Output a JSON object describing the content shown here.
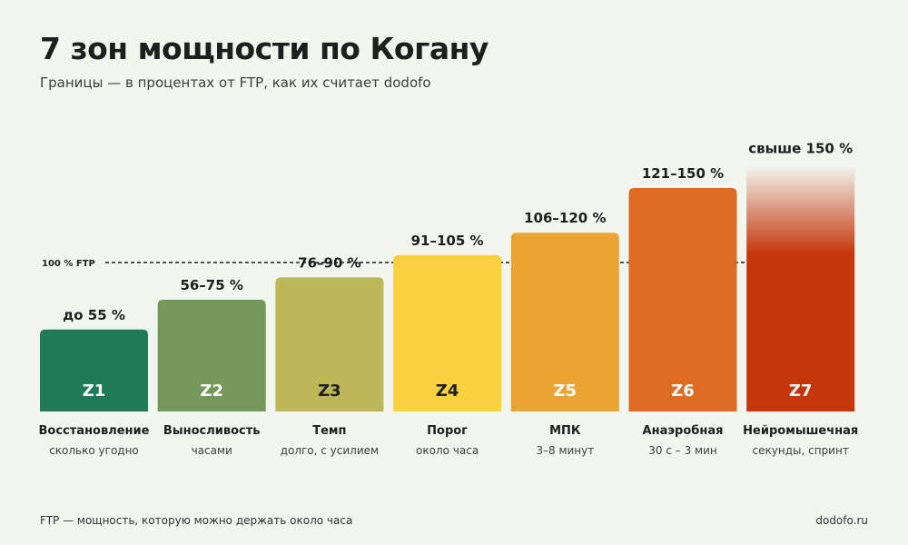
{
  "header": {
    "title": "7 зон мощности по Когану",
    "subtitle": "Границы — в процентах от FTP, как их считает dodofo"
  },
  "footer": {
    "note": "FTP — мощность, которую можно держать около часа",
    "site": "dodofo.ru"
  },
  "colors": {
    "background": "#f1f6ef",
    "zones": [
      "#1f7a58",
      "#73985a",
      "#bcb758",
      "#fbd13f",
      "#eba332",
      "#de6b22",
      "#c5360b"
    ]
  },
  "chart_data": {
    "type": "bar",
    "title": "7 зон мощности по Когану",
    "subtitle": "Границы — в процентах от FTP, как их считает dodofo",
    "unit": "% FTP",
    "reference_line": {
      "label": "100 % FTP",
      "value": 100
    },
    "ylim": [
      0,
      165
    ],
    "zones": [
      {
        "code": "Z1",
        "name": "Восстановление",
        "duration": "сколько угодно",
        "range_label": "до 55 %",
        "upper": 55
      },
      {
        "code": "Z2",
        "name": "Выносливость",
        "duration": "часами",
        "range_label": "56–75 %",
        "upper": 75
      },
      {
        "code": "Z3",
        "name": "Темп",
        "duration": "долго, с усилием",
        "range_label": "76–90 %",
        "upper": 90
      },
      {
        "code": "Z4",
        "name": "Порог",
        "duration": "около часа",
        "range_label": "91–105 %",
        "upper": 105
      },
      {
        "code": "Z5",
        "name": "МПК",
        "duration": "3–8 минут",
        "range_label": "106–120 %",
        "upper": 120
      },
      {
        "code": "Z6",
        "name": "Анаэробная",
        "duration": "30 с – 3 мин",
        "range_label": "121–150 %",
        "upper": 150
      },
      {
        "code": "Z7",
        "name": "Нейромышечная",
        "duration": "секунды, спринт",
        "range_label": "свыше 150 %",
        "upper": 165,
        "open_ended": true
      }
    ],
    "grid": false,
    "legend": "none"
  }
}
